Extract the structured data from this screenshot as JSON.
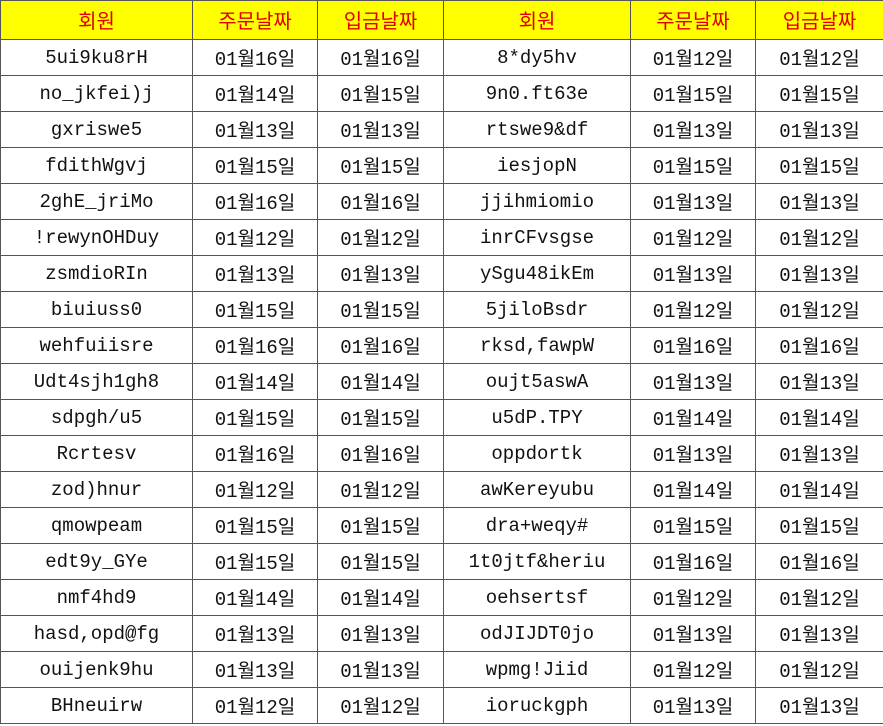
{
  "table": {
    "header": [
      "회원",
      "주문날짜",
      "입금날짜",
      "회원",
      "주문날짜",
      "입금날짜"
    ],
    "rows": [
      [
        "5ui9ku8rH",
        "01월16일",
        "01월16일",
        "8*dy5hv",
        "01월12일",
        "01월12일"
      ],
      [
        "no_jkfei)j",
        "01월14일",
        "01월15일",
        "9n0.ft63e",
        "01월15일",
        "01월15일"
      ],
      [
        "gxriswe5",
        "01월13일",
        "01월13일",
        "rtswe9&df",
        "01월13일",
        "01월13일"
      ],
      [
        "fdithWgvj",
        "01월15일",
        "01월15일",
        "iesjopN",
        "01월15일",
        "01월15일"
      ],
      [
        "2ghE_jriMo",
        "01월16일",
        "01월16일",
        "jjihmiomio",
        "01월13일",
        "01월13일"
      ],
      [
        "!rewynOHDuy",
        "01월12일",
        "01월12일",
        "inrCFvsgse",
        "01월12일",
        "01월12일"
      ],
      [
        "zsmdioRIn",
        "01월13일",
        "01월13일",
        "ySgu48ikEm",
        "01월13일",
        "01월13일"
      ],
      [
        "biuiuss0",
        "01월15일",
        "01월15일",
        "5jiloBsdr",
        "01월12일",
        "01월12일"
      ],
      [
        "wehfuiisre",
        "01월16일",
        "01월16일",
        "rksd,fawpW",
        "01월16일",
        "01월16일"
      ],
      [
        "Udt4sjh1gh8",
        "01월14일",
        "01월14일",
        "oujt5aswA",
        "01월13일",
        "01월13일"
      ],
      [
        "sdpgh/u5",
        "01월15일",
        "01월15일",
        "u5dP.TPY",
        "01월14일",
        "01월14일"
      ],
      [
        "Rcrtesv",
        "01월16일",
        "01월16일",
        "oppdortk",
        "01월13일",
        "01월13일"
      ],
      [
        "zod)hnur",
        "01월12일",
        "01월12일",
        "awKereyubu",
        "01월14일",
        "01월14일"
      ],
      [
        "qmowpeam",
        "01월15일",
        "01월15일",
        "dra+weqy#",
        "01월15일",
        "01월15일"
      ],
      [
        "edt9y_GYe",
        "01월15일",
        "01월15일",
        "1t0jtf&heriu",
        "01월16일",
        "01월16일"
      ],
      [
        "nmf4hd9",
        "01월14일",
        "01월14일",
        "oehsertsf",
        "01월12일",
        "01월12일"
      ],
      [
        "hasd,opd@fg",
        "01월13일",
        "01월13일",
        "odJIJDT0jo",
        "01월13일",
        "01월13일"
      ],
      [
        "ouijenk9hu",
        "01월13일",
        "01월13일",
        "wpmg!Jiid",
        "01월12일",
        "01월12일"
      ],
      [
        "BHneuirw",
        "01월12일",
        "01월12일",
        "ioruckgph",
        "01월13일",
        "01월13일"
      ]
    ]
  }
}
